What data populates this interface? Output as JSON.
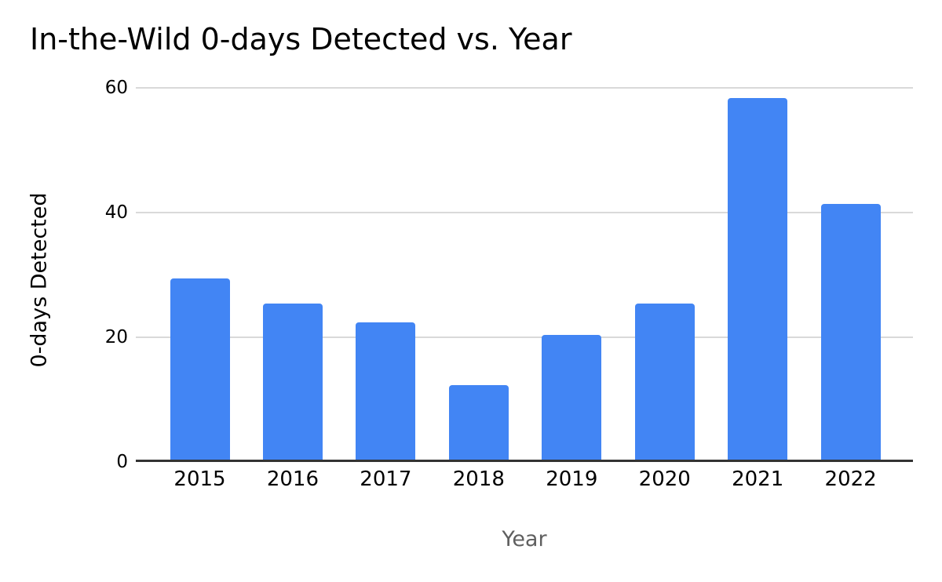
{
  "chart_data": {
    "type": "bar",
    "title": "In-the-Wild 0-days Detected vs. Year",
    "xlabel": "Year",
    "ylabel": "0-days Detected",
    "categories": [
      "2015",
      "2016",
      "2017",
      "2018",
      "2019",
      "2020",
      "2021",
      "2022"
    ],
    "values": [
      29,
      25,
      22,
      12,
      20,
      25,
      58,
      41
    ],
    "series": [
      {
        "name": "0-days Detected",
        "values": [
          29,
          25,
          22,
          12,
          20,
          25,
          58,
          41
        ]
      }
    ],
    "ylim": [
      0,
      60
    ],
    "yticks": [
      0,
      20,
      40,
      60
    ],
    "grid": "horizontal",
    "legend_position": "none",
    "colors": {
      "bar": "#4285f4",
      "gridline": "#d9d9d9",
      "axis_line": "#333333",
      "title": "#000000",
      "tick_label": "#000000",
      "x_axis_title": "#5f5f5f",
      "y_axis_title": "#000000",
      "background": "#ffffff"
    }
  }
}
